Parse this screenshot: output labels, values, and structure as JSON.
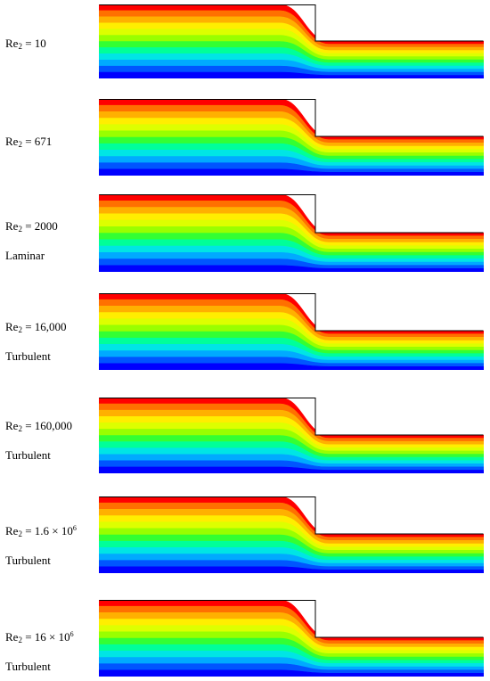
{
  "panels": [
    {
      "re_prefix": "Re",
      "re_sub": "2",
      "re_value": "= 10",
      "re_sup": "",
      "regime": "",
      "tops": [
        0.0,
        0.0
      ]
    },
    {
      "re_prefix": "Re",
      "re_sub": "2",
      "re_value": "= 671",
      "re_sup": "",
      "regime": "",
      "tops": [
        0.0,
        0.0
      ]
    },
    {
      "re_prefix": "Re",
      "re_sub": "2",
      "re_value": "= 2000",
      "re_sup": "",
      "regime": "Laminar",
      "tops": [
        0.0,
        0.0
      ]
    },
    {
      "re_prefix": "Re",
      "re_sub": "2",
      "re_value": "= 16,000",
      "re_sup": "",
      "regime": "Turbulent",
      "tops": [
        0.0,
        0.0
      ]
    },
    {
      "re_prefix": "Re",
      "re_sub": "2",
      "re_value": "= 160,000",
      "re_sup": "",
      "regime": "Turbulent",
      "tops": [
        0.0,
        0.0
      ]
    },
    {
      "re_prefix": "Re",
      "re_sub": "2",
      "re_value": "= 1.6 × 10",
      "re_sup": "6",
      "regime": "Turbulent",
      "tops": [
        0.0,
        0.0
      ]
    },
    {
      "re_prefix": "Re",
      "re_sub": "2",
      "re_value": "= 16 × 10",
      "re_sup": "6",
      "regime": "Turbulent",
      "tops": [
        0.0,
        0.0
      ]
    }
  ],
  "colormap": [
    "#0000ff",
    "#0055ff",
    "#00aaff",
    "#00e5e5",
    "#00ff99",
    "#33ff33",
    "#99ff00",
    "#ddff00",
    "#ffee00",
    "#ffb000",
    "#ff7000",
    "#ff0000"
  ],
  "colors": {
    "outline": "#000000",
    "background": "#ffffff"
  }
}
